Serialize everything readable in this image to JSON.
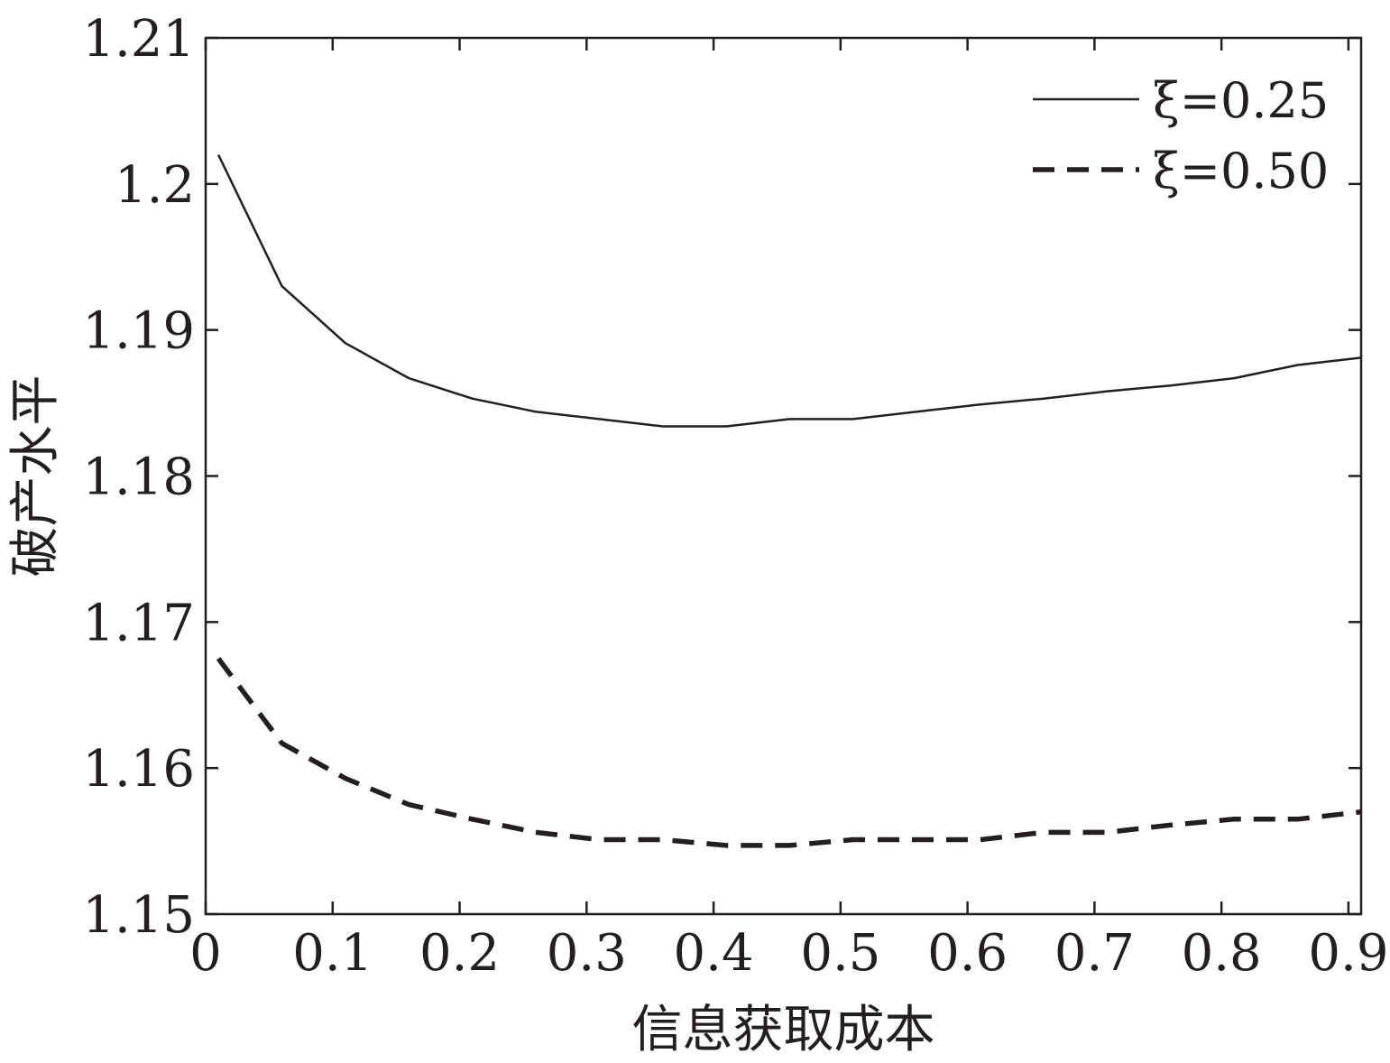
{
  "chart_data": {
    "type": "line",
    "title": "",
    "xlabel": "信息获取成本",
    "ylabel": "破产水平",
    "xlim": [
      0,
      0.91
    ],
    "ylim": [
      1.15,
      1.21
    ],
    "x_ticks": [
      "0",
      "0.1",
      "0.2",
      "0.3",
      "0.4",
      "0.5",
      "0.6",
      "0.7",
      "0.8",
      "0.9"
    ],
    "y_ticks": [
      "1.15",
      "1.16",
      "1.17",
      "1.18",
      "1.19",
      "1.2",
      "1.21"
    ],
    "legend_position": "top-right",
    "series": [
      {
        "name": "ξ=0.25",
        "style": "solid",
        "color": "#231f20",
        "x": [
          0.01,
          0.06,
          0.11,
          0.16,
          0.21,
          0.26,
          0.31,
          0.36,
          0.41,
          0.46,
          0.51,
          0.56,
          0.61,
          0.66,
          0.71,
          0.76,
          0.81,
          0.86,
          0.91
        ],
        "y": [
          1.202,
          1.193,
          1.1891,
          1.1867,
          1.1853,
          1.1844,
          1.1839,
          1.1834,
          1.1834,
          1.1839,
          1.1839,
          1.1844,
          1.1849,
          1.1853,
          1.1858,
          1.1862,
          1.1867,
          1.1876,
          1.1881
        ]
      },
      {
        "name": "ξ=0.50",
        "style": "dashed",
        "color": "#231f20",
        "x": [
          0.01,
          0.06,
          0.11,
          0.16,
          0.21,
          0.26,
          0.31,
          0.36,
          0.41,
          0.46,
          0.51,
          0.56,
          0.61,
          0.66,
          0.71,
          0.76,
          0.81,
          0.86,
          0.91
        ],
        "y": [
          1.1675,
          1.1617,
          1.1593,
          1.1575,
          1.1565,
          1.1556,
          1.1551,
          1.1551,
          1.1547,
          1.1547,
          1.1551,
          1.1551,
          1.1551,
          1.1556,
          1.1556,
          1.1561,
          1.1565,
          1.1565,
          1.157
        ]
      }
    ]
  }
}
